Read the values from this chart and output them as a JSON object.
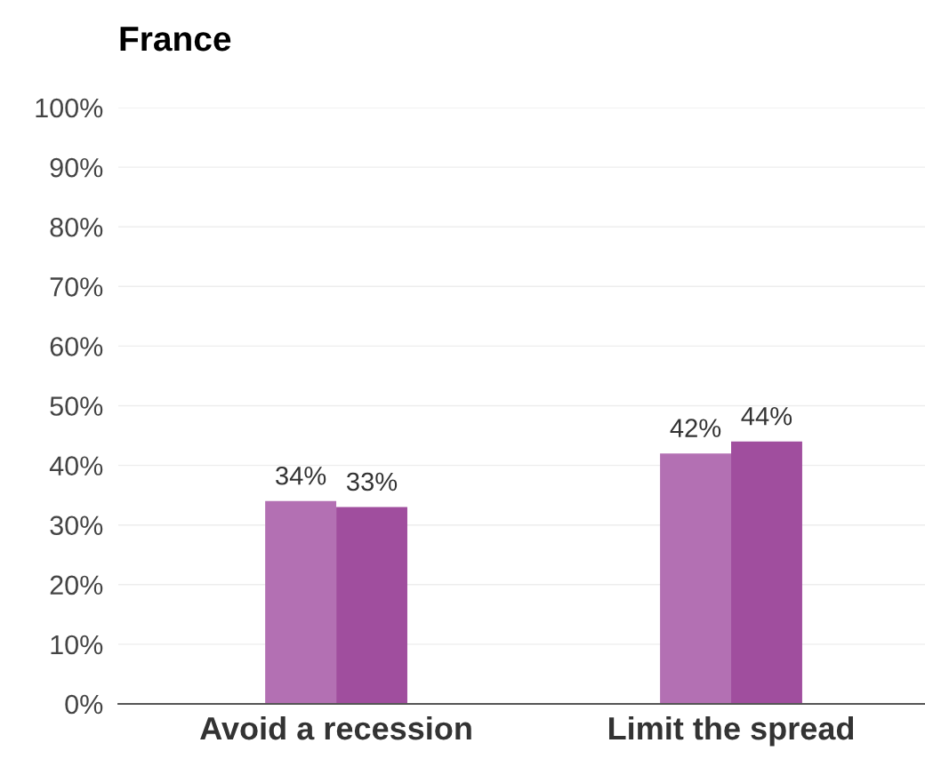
{
  "chart_data": {
    "type": "bar",
    "title": "France",
    "categories": [
      "Avoid a recession",
      "Limit the spread"
    ],
    "series": [
      {
        "color": "#b370b3",
        "values": [
          34,
          42
        ],
        "value_labels": [
          "34%",
          "42%"
        ]
      },
      {
        "color": "#a04e9e",
        "values": [
          33,
          44
        ],
        "value_labels": [
          "33%",
          "44%"
        ]
      }
    ],
    "ylim": [
      0,
      100
    ],
    "yticks": [
      {
        "value": 0,
        "label": "0%"
      },
      {
        "value": 10,
        "label": "10%"
      },
      {
        "value": 20,
        "label": "20%"
      },
      {
        "value": 30,
        "label": "30%"
      },
      {
        "value": 40,
        "label": "40%"
      },
      {
        "value": 50,
        "label": "50%"
      },
      {
        "value": 60,
        "label": "60%"
      },
      {
        "value": 70,
        "label": "70%"
      },
      {
        "value": 80,
        "label": "80%"
      },
      {
        "value": 90,
        "label": "90%"
      },
      {
        "value": 100,
        "label": "100%"
      }
    ],
    "grid": "y"
  }
}
